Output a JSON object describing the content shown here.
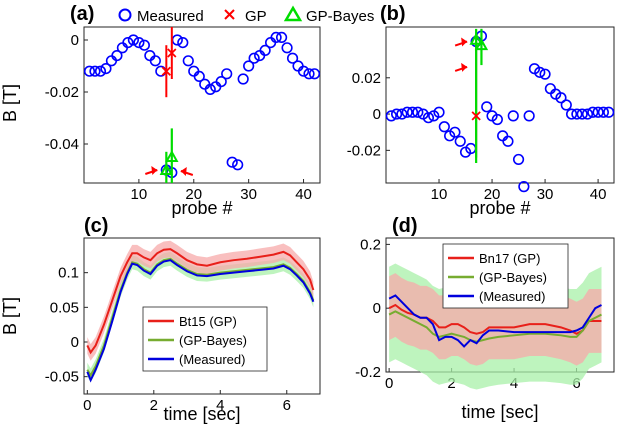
{
  "figure": {
    "top_legend": [
      {
        "label": "Measured",
        "marker": "circle",
        "color": "#0000ff"
      },
      {
        "label": "GP",
        "marker": "x",
        "color": "#ff0000"
      },
      {
        "label": "GP-Bayes",
        "marker": "triangle",
        "color": "#00dd00"
      }
    ],
    "colors": {
      "measured": "#0000ff",
      "gp": "#ff0000",
      "bayes": "#00dd00",
      "dark": "#8b1a00",
      "arrow": "#ff0000",
      "line_gp": "#e8201a",
      "line_bayes": "#77ac30",
      "line_meas": "#0000dd",
      "band_gp": "#f7a9a9",
      "band_bayes": "#a8f0a8"
    }
  },
  "chart_data": [
    {
      "panel": "(a)",
      "type": "scatter",
      "xlabel": "probe #",
      "ylabel": "B [T]",
      "xlim": [
        0,
        43
      ],
      "ylim": [
        -0.055,
        0.005
      ],
      "xticks": [
        10,
        20,
        30,
        40
      ],
      "xtick_labels": [
        "10",
        "20",
        "30",
        "40"
      ],
      "yticks": [
        0,
        -0.02,
        -0.04
      ],
      "ytick_labels": [
        "0",
        "-0.02",
        "-0.04"
      ],
      "measured": {
        "x": [
          1,
          2,
          3,
          4,
          5,
          6,
          7,
          8,
          9,
          10,
          11,
          12,
          13,
          14,
          15,
          16,
          17,
          18,
          19,
          20,
          21,
          22,
          23,
          24,
          25,
          26,
          27,
          28,
          29,
          30,
          31,
          32,
          33,
          34,
          35,
          36,
          37,
          38,
          39,
          40,
          41,
          42
        ],
        "y": [
          -0.012,
          -0.012,
          -0.012,
          -0.011,
          -0.008,
          -0.006,
          -0.003,
          -0.001,
          0.0,
          -0.001,
          -0.002,
          -0.006,
          -0.008,
          -0.012,
          -0.05,
          -0.051,
          0.0,
          -0.001,
          -0.008,
          -0.012,
          -0.014,
          -0.017,
          -0.019,
          -0.018,
          -0.016,
          -0.013,
          -0.047,
          -0.048,
          -0.015,
          -0.01,
          -0.007,
          -0.006,
          -0.004,
          -0.001,
          0.001,
          0.001,
          -0.003,
          -0.007,
          -0.01,
          -0.012,
          -0.013,
          -0.013
        ]
      },
      "gp": {
        "x": [
          15,
          16
        ],
        "y": [
          -0.012,
          -0.005
        ],
        "err_low": [
          -0.022,
          -0.015
        ],
        "err_high": [
          -0.002,
          0.005
        ]
      },
      "gp_bayes": {
        "x": [
          15,
          16
        ],
        "y": [
          -0.05,
          -0.045
        ],
        "err_low": [
          -0.055,
          -0.055
        ],
        "err_high": [
          -0.043,
          -0.034
        ]
      },
      "arrows": [
        {
          "x": 15,
          "y": -0.05,
          "from": "left"
        },
        {
          "x": 16,
          "y": -0.05,
          "from": "right"
        }
      ]
    },
    {
      "panel": "(b)",
      "type": "scatter",
      "xlabel": "probe #",
      "ylabel": "",
      "xlim": [
        0,
        43
      ],
      "ylim": [
        -0.038,
        0.048
      ],
      "xticks": [
        10,
        20,
        30,
        40
      ],
      "xtick_labels": [
        "10",
        "20",
        "30",
        "40"
      ],
      "yticks": [
        0.02,
        0,
        -0.02
      ],
      "ytick_labels": [
        "0.02",
        "0",
        "-0.02"
      ],
      "measured": {
        "x": [
          1,
          2,
          3,
          4,
          5,
          6,
          7,
          8,
          9,
          10,
          11,
          12,
          13,
          14,
          15,
          16,
          17,
          18,
          19,
          20,
          21,
          22,
          23,
          24,
          25,
          26,
          27,
          28,
          29,
          30,
          31,
          32,
          33,
          34,
          35,
          36,
          37,
          38,
          39,
          40,
          41,
          42
        ],
        "y": [
          -0.001,
          0.0,
          0.0,
          0.001,
          0.001,
          0.001,
          0.0,
          -0.002,
          -0.001,
          0.001,
          -0.007,
          -0.012,
          -0.01,
          -0.015,
          -0.021,
          -0.019,
          0.04,
          0.043,
          0.004,
          -0.001,
          -0.003,
          -0.012,
          -0.015,
          -0.001,
          -0.025,
          -0.04,
          -0.001,
          0.025,
          0.023,
          0.022,
          0.014,
          0.011,
          0.009,
          0.005,
          0.0,
          0.0,
          0.0,
          0.0,
          0.001,
          0.001,
          0.001,
          0.001
        ]
      },
      "gp": {
        "x": [
          17
        ],
        "y": [
          -0.001
        ],
        "err_low": [
          -0.024
        ],
        "err_high": [
          0.04
        ]
      },
      "gp_bayes": {
        "x": [
          17,
          18
        ],
        "y": [
          0.041,
          0.038
        ],
        "err_low": [
          -0.027,
          0.027
        ],
        "err_high": [
          0.047,
          0.047
        ]
      },
      "arrows": [
        {
          "x": 17,
          "y": 0.04,
          "from": "left"
        },
        {
          "x": 17,
          "y": 0.026,
          "from": "left"
        }
      ]
    },
    {
      "panel": "(c)",
      "type": "line",
      "xlabel": "time [sec]",
      "ylabel": "B [T]",
      "xlim": [
        -0.1,
        7
      ],
      "ylim": [
        -0.075,
        0.15
      ],
      "xticks": [
        0,
        2,
        4,
        6
      ],
      "xtick_labels": [
        "0",
        "2",
        "4",
        "6"
      ],
      "yticks": [
        0.1,
        0.05,
        0,
        -0.05
      ],
      "ytick_labels": [
        "0.1",
        "0.05",
        "0",
        "-0.05"
      ],
      "x": [
        0,
        0.1,
        0.25,
        0.5,
        0.75,
        1.0,
        1.2,
        1.35,
        1.5,
        1.7,
        1.9,
        2.1,
        2.3,
        2.5,
        2.7,
        3.0,
        3.3,
        3.6,
        4.0,
        4.4,
        4.8,
        5.2,
        5.6,
        5.9,
        6.1,
        6.3,
        6.5,
        6.7,
        6.8
      ],
      "legend": [
        "Bt15 (GP)",
        "(GP-Bayes)",
        "(Measured)"
      ],
      "series": [
        {
          "name": "Bt15 (GP)",
          "values": [
            -0.005,
            -0.015,
            -0.005,
            0.025,
            0.06,
            0.095,
            0.115,
            0.128,
            0.128,
            0.122,
            0.118,
            0.128,
            0.133,
            0.134,
            0.128,
            0.118,
            0.112,
            0.11,
            0.115,
            0.118,
            0.12,
            0.123,
            0.126,
            0.13,
            0.125,
            0.115,
            0.105,
            0.09,
            0.075
          ],
          "band": 0.012
        },
        {
          "name": "(GP-Bayes)",
          "values": [
            -0.04,
            -0.048,
            -0.035,
            -0.005,
            0.035,
            0.075,
            0.1,
            0.115,
            0.113,
            0.105,
            0.1,
            0.112,
            0.118,
            0.12,
            0.113,
            0.104,
            0.098,
            0.097,
            0.1,
            0.102,
            0.104,
            0.106,
            0.108,
            0.112,
            0.107,
            0.098,
            0.088,
            0.072,
            0.06
          ],
          "band": 0.01
        },
        {
          "name": "(Measured)",
          "values": [
            -0.043,
            -0.055,
            -0.04,
            -0.01,
            0.03,
            0.072,
            0.098,
            0.113,
            0.111,
            0.103,
            0.098,
            0.11,
            0.116,
            0.118,
            0.111,
            0.102,
            0.096,
            0.095,
            0.098,
            0.1,
            0.102,
            0.104,
            0.106,
            0.11,
            0.105,
            0.096,
            0.086,
            0.07,
            0.058
          ]
        }
      ]
    },
    {
      "panel": "(d)",
      "type": "line",
      "xlabel": "time [sec]",
      "ylabel": "",
      "xlim": [
        -0.1,
        7.2
      ],
      "ylim": [
        -0.2,
        0.22
      ],
      "xticks": [
        0,
        2,
        4,
        6
      ],
      "xtick_labels": [
        "0",
        "2",
        "4",
        "6"
      ],
      "yticks": [
        0.2,
        0,
        -0.2
      ],
      "ytick_labels": [
        "0.2",
        "0",
        "-0.2"
      ],
      "x": [
        0,
        0.2,
        0.4,
        0.6,
        0.8,
        1.0,
        1.2,
        1.4,
        1.6,
        1.8,
        2.0,
        2.2,
        2.4,
        2.6,
        2.8,
        3.0,
        3.2,
        3.5,
        4.0,
        4.5,
        5.0,
        5.5,
        5.8,
        6.0,
        6.2,
        6.4,
        6.6,
        6.8
      ],
      "legend": [
        "Bn17 (GP)",
        "(GP-Bayes)",
        "(Measured)"
      ],
      "series": [
        {
          "name": "Bn17 (GP)",
          "values": [
            0.0,
            0.01,
            -0.005,
            -0.015,
            -0.02,
            -0.03,
            -0.03,
            -0.04,
            -0.06,
            -0.06,
            -0.05,
            -0.05,
            -0.06,
            -0.075,
            -0.08,
            -0.075,
            -0.06,
            -0.06,
            -0.06,
            -0.05,
            -0.05,
            -0.06,
            -0.07,
            -0.08,
            -0.07,
            -0.04,
            -0.04,
            -0.04
          ],
          "band": 0.1
        },
        {
          "name": "(GP-Bayes)",
          "values": [
            -0.02,
            -0.01,
            -0.02,
            -0.03,
            -0.04,
            -0.05,
            -0.06,
            -0.08,
            -0.09,
            -0.085,
            -0.08,
            -0.085,
            -0.09,
            -0.1,
            -0.105,
            -0.1,
            -0.095,
            -0.09,
            -0.085,
            -0.08,
            -0.08,
            -0.085,
            -0.09,
            -0.09,
            -0.07,
            -0.04,
            -0.03,
            -0.02
          ],
          "band": 0.15
        },
        {
          "name": "(Measured)",
          "values": [
            0.03,
            0.04,
            0.02,
            0.0,
            -0.02,
            -0.03,
            -0.03,
            -0.05,
            -0.1,
            -0.09,
            -0.09,
            -0.1,
            -0.12,
            -0.1,
            -0.11,
            -0.085,
            -0.07,
            -0.07,
            -0.075,
            -0.075,
            -0.075,
            -0.075,
            -0.075,
            -0.07,
            -0.06,
            -0.03,
            0.0,
            0.01
          ]
        }
      ]
    }
  ]
}
